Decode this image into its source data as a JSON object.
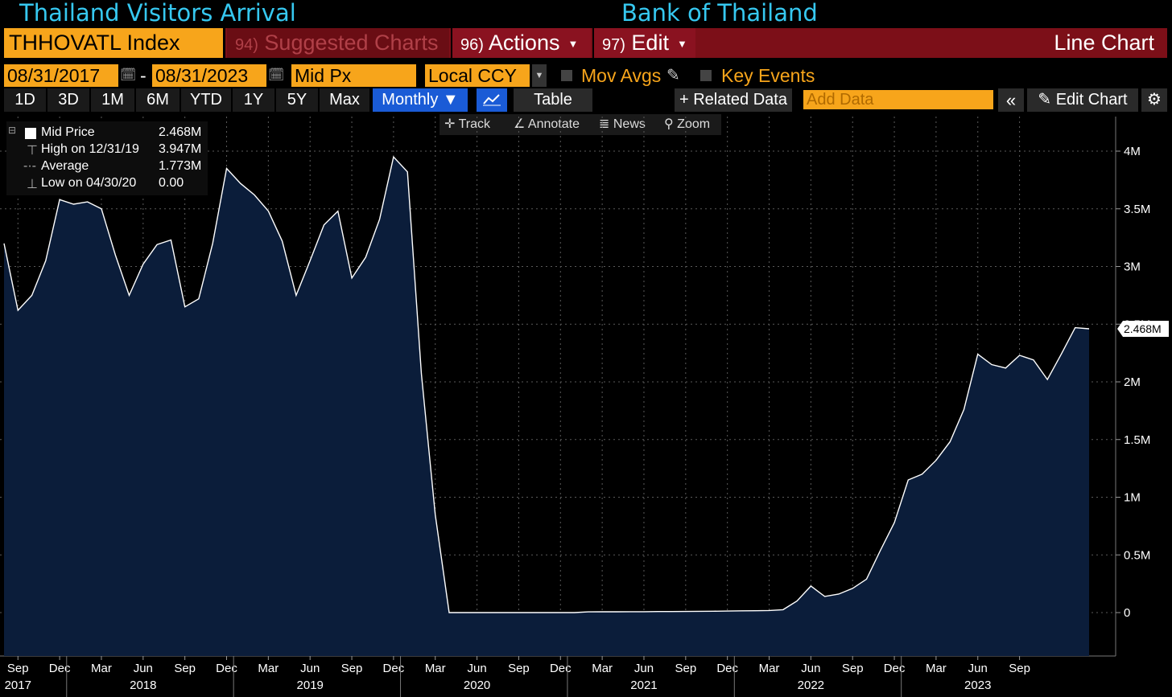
{
  "header": {
    "title": "Thailand Visitors Arrival",
    "source": "Bank of Thailand"
  },
  "toolbar": {
    "ticker": "THHOVATL Index",
    "suggested_num": "94)",
    "suggested_label": "Suggested Charts",
    "actions_num": "96)",
    "actions_label": "Actions",
    "edit_num": "97)",
    "edit_label": "Edit",
    "chart_type_label": "Line Chart"
  },
  "controls": {
    "start_date": "08/31/2017",
    "dash": "-",
    "end_date": "08/31/2023",
    "field": "Mid Px",
    "currency": "Local CCY",
    "mov_avgs_label": "Mov Avgs",
    "key_events_label": "Key Events"
  },
  "periods": [
    "1D",
    "3D",
    "1M",
    "6M",
    "YTD",
    "1Y",
    "5Y",
    "Max"
  ],
  "frequency": "Monthly",
  "table_label": "Table",
  "related_data_label": "+ Related Data",
  "add_data_placeholder": "Add Data",
  "edit_chart_label": "Edit Chart",
  "tools": [
    "Track",
    "Annotate",
    "News",
    "Zoom"
  ],
  "legend": {
    "mid_label": "Mid Price",
    "mid_value": "2.468M",
    "high_label": "High on 12/31/19",
    "high_value": "3.947M",
    "avg_label": "Average",
    "avg_value": "1.773M",
    "low_label": "Low on 04/30/20",
    "low_value": "0.00"
  },
  "colors": {
    "accent_orange": "#f7a51b",
    "menu_red": "#7c0f18",
    "title_cyan": "#36c8f0",
    "area_fill": "#0b1d3a",
    "line": "#ffffff"
  },
  "chart_data": {
    "type": "area",
    "title": "Thailand Visitors Arrival",
    "ylim": [
      -0.35,
      4.3
    ],
    "yticks": [
      0,
      0.5,
      1,
      1.5,
      2,
      2.5,
      3,
      3.5,
      4
    ],
    "ytick_labels": [
      "0",
      "0.5M",
      "1M",
      "1.5M",
      "2M",
      "2.5M",
      "3M",
      "3.5M",
      "4M"
    ],
    "last_value_label": "2.468M",
    "x_month_labels": [
      "Sep",
      "Dec",
      "Mar",
      "Jun",
      "Sep",
      "Dec",
      "Mar",
      "Jun",
      "Sep",
      "Dec",
      "Mar",
      "Jun",
      "Sep",
      "Dec",
      "Mar",
      "Jun",
      "Sep",
      "Dec",
      "Mar",
      "Jun",
      "Sep",
      "Dec",
      "Mar",
      "Jun",
      "Sep"
    ],
    "x_year_labels": [
      "2017",
      "2018",
      "2019",
      "2020",
      "2021",
      "2022",
      "2023"
    ],
    "x_year_label_index": [
      0,
      3,
      7,
      11,
      15,
      19,
      23
    ],
    "series": [
      {
        "values": [
          3.2,
          2.62,
          2.75,
          3.05,
          3.58,
          3.54,
          3.56,
          3.5,
          3.1,
          2.75,
          3.02,
          3.19,
          3.23,
          2.65,
          2.72,
          3.2,
          3.85,
          3.72,
          3.62,
          3.48,
          3.22,
          2.75,
          3.05,
          3.36,
          3.48,
          2.9,
          3.08,
          3.41,
          3.95,
          3.82,
          2.07,
          0.85,
          0.0,
          0.0,
          0.0,
          0.0,
          0.0,
          0.0,
          0.0,
          0.0,
          0.0,
          0.0,
          0.006,
          0.007,
          0.007,
          0.008,
          0.008,
          0.009,
          0.009,
          0.01,
          0.011,
          0.012,
          0.013,
          0.015,
          0.016,
          0.018,
          0.025,
          0.1,
          0.23,
          0.14,
          0.16,
          0.21,
          0.29,
          0.54,
          0.78,
          1.15,
          1.2,
          1.32,
          1.48,
          1.76,
          2.24,
          2.15,
          2.12,
          2.23,
          2.19,
          2.02,
          2.24,
          2.47,
          2.46
        ]
      }
    ]
  }
}
